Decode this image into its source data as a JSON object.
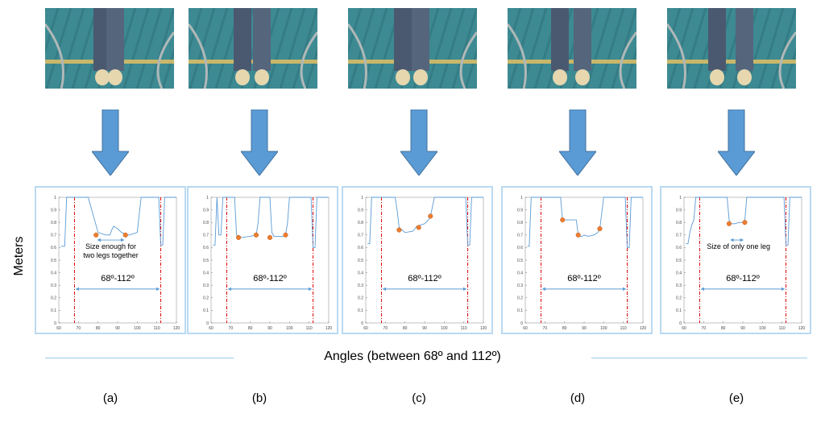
{
  "y_axis_label": "Meters",
  "x_axis_label": "Angles (between 68º and 112º)",
  "range_label": "68º-112º",
  "colors": {
    "curve": "#5b9bd5",
    "marker": "#ed7d31",
    "threshold": "#e00000",
    "arrow": "#5b9bd5",
    "frame": "#b9d9f2"
  },
  "x_ticks": [
    "60",
    "70",
    "80",
    "90",
    "100",
    "110",
    "120"
  ],
  "y_ticks": [
    "1",
    "0.9",
    "0.8",
    "0.7",
    "0.6",
    "0.5",
    "0.4",
    "0.3",
    "0.2",
    "0.1",
    "0"
  ],
  "panels": [
    {
      "id": "a",
      "label": "(a)",
      "annotation": "Size enough for\ntwo legs together"
    },
    {
      "id": "b",
      "label": "(b)",
      "annotation": ""
    },
    {
      "id": "c",
      "label": "(c)",
      "annotation": ""
    },
    {
      "id": "d",
      "label": "(d)",
      "annotation": ""
    },
    {
      "id": "e",
      "label": "(e)",
      "annotation": "Size of only one leg"
    }
  ],
  "chart_data": [
    {
      "type": "line",
      "xlim": [
        60,
        120
      ],
      "ylim": [
        0,
        1
      ],
      "thresholds": [
        68,
        112
      ],
      "x": [
        61,
        63,
        64,
        66,
        68,
        69,
        70,
        72,
        73,
        74,
        75,
        80,
        84,
        86,
        87,
        88,
        90,
        92,
        95,
        96,
        100,
        102,
        104,
        106,
        108,
        111,
        112,
        113,
        114,
        116,
        120
      ],
      "y": [
        0.61,
        0.61,
        1,
        1,
        1,
        1,
        1,
        1,
        1,
        1,
        1,
        0.72,
        0.7,
        0.7,
        0.74,
        0.77,
        0.75,
        0.72,
        0.7,
        0.7,
        0.72,
        1,
        1,
        1,
        1,
        1,
        0.62,
        0.62,
        1,
        1,
        1
      ],
      "markers": [
        [
          79,
          0.7
        ],
        [
          94,
          0.7
        ]
      ]
    },
    {
      "type": "line",
      "xlim": [
        60,
        120
      ],
      "ylim": [
        0,
        1
      ],
      "thresholds": [
        68,
        112
      ],
      "x": [
        61,
        62,
        63,
        64,
        65,
        66,
        70,
        71,
        72,
        73,
        74,
        75,
        80,
        83,
        84,
        85,
        86,
        88,
        90,
        91,
        92,
        97,
        98,
        99,
        100,
        101,
        110,
        111,
        112,
        113,
        114,
        120
      ],
      "y": [
        0.62,
        0.62,
        1,
        0.7,
        0.7,
        1,
        1,
        1,
        1,
        0.7,
        0.68,
        0.68,
        0.69,
        0.7,
        0.8,
        1,
        1,
        1,
        1,
        0.72,
        0.69,
        0.69,
        0.7,
        0.8,
        1,
        1,
        1,
        1,
        0.6,
        0.6,
        1,
        1
      ],
      "markers": [
        [
          74,
          0.68
        ],
        [
          83,
          0.7
        ],
        [
          90,
          0.68
        ],
        [
          98,
          0.7
        ]
      ]
    },
    {
      "type": "line",
      "xlim": [
        60,
        120
      ],
      "ylim": [
        0,
        1
      ],
      "thresholds": [
        68,
        112
      ],
      "x": [
        61,
        62,
        63,
        64,
        66,
        68,
        70,
        75,
        76,
        77,
        80,
        84,
        86,
        88,
        90,
        92,
        93,
        95,
        98,
        100,
        110,
        111,
        112,
        113,
        114,
        120
      ],
      "y": [
        0.63,
        0.63,
        1,
        1,
        1,
        1,
        1,
        1,
        0.9,
        0.76,
        0.72,
        0.73,
        0.77,
        0.78,
        0.79,
        0.82,
        0.85,
        1,
        1,
        1,
        1,
        1,
        0.62,
        0.62,
        1,
        1
      ],
      "markers": [
        [
          77,
          0.74
        ],
        [
          87,
          0.76
        ],
        [
          93,
          0.85
        ]
      ]
    },
    {
      "type": "line",
      "xlim": [
        60,
        120
      ],
      "ylim": [
        0,
        1
      ],
      "thresholds": [
        68,
        112
      ],
      "x": [
        61,
        62,
        63,
        64,
        66,
        68,
        70,
        75,
        78,
        79,
        80,
        84,
        86,
        87,
        88,
        89,
        90,
        92,
        95,
        97,
        98,
        100,
        110,
        111,
        112,
        113,
        114,
        120
      ],
      "y": [
        0.61,
        0.61,
        1,
        1,
        1,
        1,
        1,
        1,
        1,
        0.82,
        0.82,
        0.82,
        0.82,
        0.7,
        0.69,
        0.69,
        0.7,
        0.69,
        0.7,
        0.72,
        0.75,
        1,
        1,
        1,
        0.6,
        0.6,
        1,
        1
      ],
      "markers": [
        [
          79,
          0.82
        ],
        [
          87,
          0.7
        ],
        [
          98,
          0.75
        ]
      ]
    },
    {
      "type": "line",
      "xlim": [
        60,
        120
      ],
      "ylim": [
        0,
        1
      ],
      "thresholds": [
        68,
        112
      ],
      "x": [
        61,
        62,
        63,
        64,
        65,
        66,
        68,
        70,
        75,
        80,
        82,
        83,
        84,
        86,
        88,
        90,
        91,
        92,
        100,
        110,
        111,
        112,
        113,
        114,
        120
      ],
      "y": [
        0.63,
        0.63,
        0.72,
        0.78,
        0.82,
        1,
        1,
        1,
        1,
        1,
        1,
        0.82,
        0.79,
        0.79,
        0.8,
        0.8,
        0.81,
        1,
        1,
        1,
        1,
        0.62,
        0.62,
        1,
        1
      ],
      "markers": [
        [
          83,
          0.79
        ],
        [
          91,
          0.8
        ]
      ]
    }
  ]
}
